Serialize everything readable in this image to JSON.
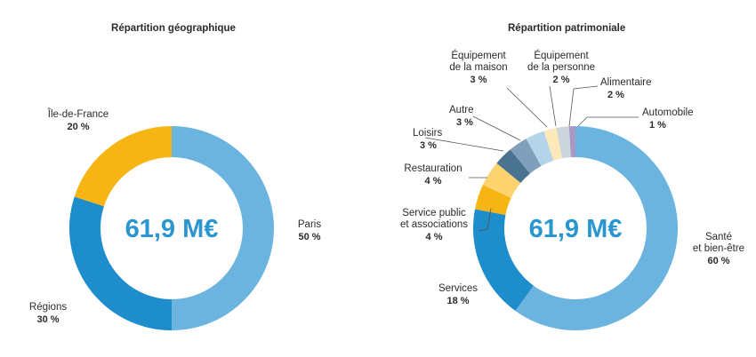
{
  "chart_data": [
    {
      "type": "donut",
      "title": "Répartition géographique",
      "center_label": "61,9 M€",
      "slices": [
        {
          "label": "Paris",
          "value": 50,
          "value_label": "50 %",
          "color": "#6ab4df"
        },
        {
          "label": "Régions",
          "value": 30,
          "value_label": "30 %",
          "color": "#1e8dcc"
        },
        {
          "label": "Île-de-France",
          "value": 20,
          "value_label": "20 %",
          "color": "#f7b514"
        }
      ]
    },
    {
      "type": "donut",
      "title": "Répartition patrimoniale",
      "center_label": "61,9 M€",
      "slices": [
        {
          "label": [
            "Santé",
            "et bien-être"
          ],
          "value": 60,
          "value_label": "60 %",
          "color": "#6ab4df"
        },
        {
          "label": [
            "Services"
          ],
          "value": 18,
          "value_label": "18 %",
          "color": "#1e8dcc"
        },
        {
          "label": [
            "Service public",
            "et associations"
          ],
          "value": 4,
          "value_label": "4 %",
          "color": "#f7b514"
        },
        {
          "label": [
            "Restauration"
          ],
          "value": 4,
          "value_label": "4 %",
          "color": "#fcd36f"
        },
        {
          "label": [
            "Loisirs"
          ],
          "value": 3,
          "value_label": "3 %",
          "color": "#4a7291"
        },
        {
          "label": [
            "Autre"
          ],
          "value": 3,
          "value_label": "3 %",
          "color": "#7f9fbb"
        },
        {
          "label": [
            "Équipement",
            "de la maison"
          ],
          "value": 3,
          "value_label": "3 %",
          "color": "#b4d4ea"
        },
        {
          "label": [
            "Équipement",
            "de la personne"
          ],
          "value": 2,
          "value_label": "2 %",
          "color": "#fce8b8"
        },
        {
          "label": [
            "Alimentaire"
          ],
          "value": 2,
          "value_label": "2 %",
          "color": "#cdd5dc"
        },
        {
          "label": [
            "Automobile"
          ],
          "value": 1,
          "value_label": "1 %",
          "color": "#a798c4"
        }
      ]
    }
  ]
}
